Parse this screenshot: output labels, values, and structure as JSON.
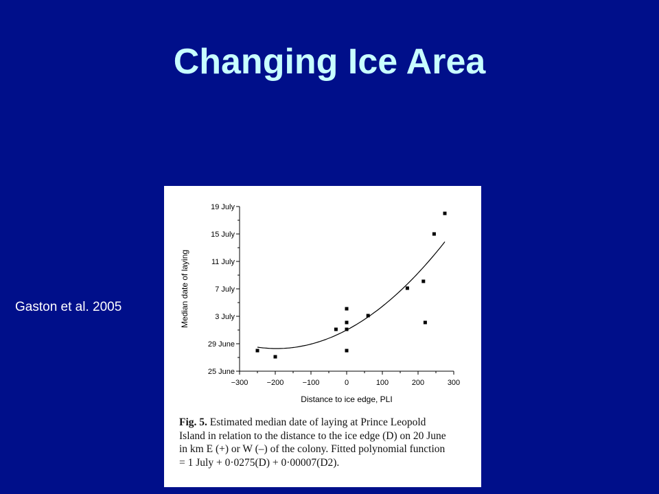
{
  "slide": {
    "title": "Changing Ice Area",
    "citation": "Gaston et al. 2005"
  },
  "colors": {
    "background": "#000f8a",
    "title": "#c8ffff",
    "text": "#ffffff",
    "figure_background": "#ffffff"
  },
  "figure": {
    "caption_label": "Fig. 5.",
    "caption_lines": [
      "Estimated median date of laying at Prince Leopold",
      "Island in relation to the distance to the ice edge (D) on 20 June",
      "in km E (+) or W (–) of the colony. Fitted polynomial function",
      "= 1 July + 0·0275(D) + 0·00007(D2)."
    ]
  },
  "chart_data": {
    "type": "scatter",
    "xlabel": "Distance to ice edge, PLI",
    "ylabel": "Median date of laying",
    "xlim": [
      -300,
      300
    ],
    "ylim": [
      25,
      49
    ],
    "x_ticks": [
      -300,
      -200,
      -100,
      0,
      100,
      200,
      300
    ],
    "x_tick_labels": [
      "−300",
      "−200",
      "−100",
      "0",
      "100",
      "200",
      "300"
    ],
    "y_ticks": [
      25,
      29,
      33,
      37,
      41,
      45,
      49
    ],
    "y_tick_labels": [
      "25 June",
      "29 June",
      "3 July",
      "7 July",
      "11 July",
      "15 July",
      "19 July"
    ],
    "y_unit_note": "days since 1 June",
    "grid": false,
    "series": [
      {
        "x": [
          -250,
          -200,
          -30,
          0,
          0,
          0,
          0,
          60,
          170,
          215,
          220,
          245,
          275
        ],
        "y": [
          28,
          27.1,
          31.1,
          28,
          31.1,
          32.1,
          34.1,
          33.1,
          37.1,
          38.1,
          32.1,
          45,
          48
        ]
      }
    ],
    "fit": {
      "name": "Fitted polynomial function",
      "x_range": [
        -250,
        275
      ],
      "formula": "1 July + 0·0275(D) + 0·00007(D2)"
    }
  }
}
